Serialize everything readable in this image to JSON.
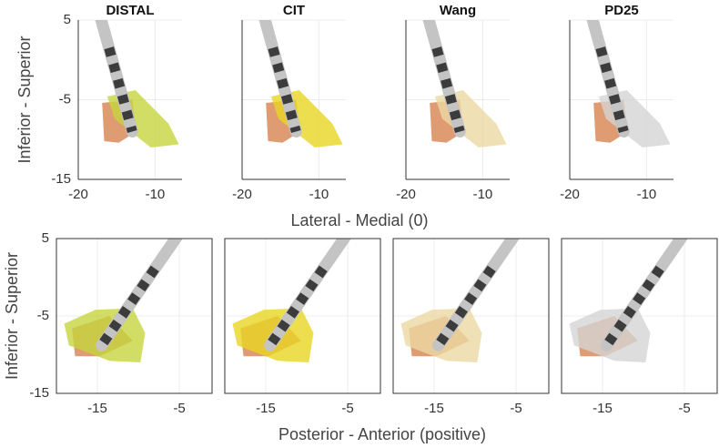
{
  "chart_data": [
    {
      "type": "atlas",
      "title": "DISTAL",
      "color": "#c5d43f",
      "ylabel": "Inferior - Superior",
      "xlabel": "Lateral - Medial (0)",
      "xlim": [
        -20,
        -6.5
      ],
      "ylim": [
        -15,
        5
      ],
      "xticks": [
        -20,
        -10
      ],
      "yticks": [
        5,
        -5,
        -15
      ]
    },
    {
      "type": "atlas",
      "title": "CIT",
      "color": "#e9d624",
      "xlim": [
        -20,
        -6.5
      ],
      "ylim": [
        -15,
        5
      ],
      "xticks": [
        -20,
        -10
      ]
    },
    {
      "type": "atlas",
      "title": "Wang",
      "color": "#ecd8a2",
      "xlim": [
        -20,
        -6.5
      ],
      "ylim": [
        -15,
        5
      ],
      "xticks": [
        -20,
        -10
      ]
    },
    {
      "type": "atlas",
      "title": "PD25",
      "color": "#d4d4d4",
      "xlim": [
        -20,
        -6.5
      ],
      "ylim": [
        -15,
        5
      ],
      "xticks": [
        -20,
        -10
      ]
    },
    {
      "type": "atlas",
      "color": "#c5d43f",
      "ylabel": "Inferior - Superior",
      "xlabel": "Posterior - Anterior (positive)",
      "xlim": [
        -20,
        -1
      ],
      "ylim": [
        -15,
        5
      ],
      "xticks": [
        -15,
        -5
      ],
      "yticks": [
        5,
        -5,
        -15
      ]
    },
    {
      "type": "atlas",
      "color": "#e9d624",
      "xlim": [
        -20,
        -1
      ],
      "ylim": [
        -15,
        5
      ],
      "xticks": [
        -15,
        -5
      ]
    },
    {
      "type": "atlas",
      "color": "#ecd8a2",
      "xlim": [
        -20,
        -1
      ],
      "ylim": [
        -15,
        5
      ],
      "xticks": [
        -15,
        -5
      ]
    },
    {
      "type": "atlas",
      "color": "#d4d4d4",
      "xlim": [
        -20,
        -1
      ],
      "ylim": [
        -15,
        5
      ],
      "xticks": [
        -15,
        -5
      ]
    }
  ]
}
